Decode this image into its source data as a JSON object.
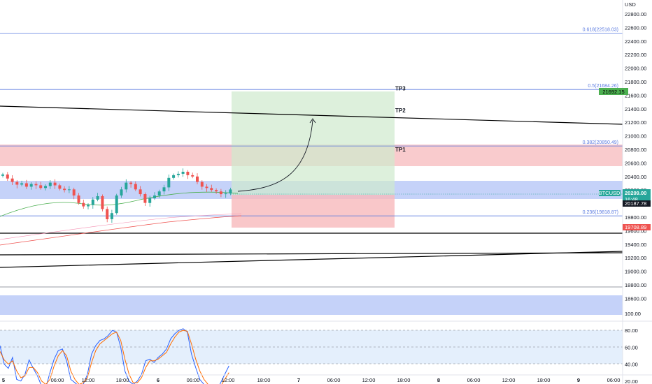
{
  "price_axis": {
    "currency": "USD",
    "ticks": [
      "22800.00",
      "22600.00",
      "22400.00",
      "22200.00",
      "22000.00",
      "21800.00",
      "21600.00",
      "21400.00",
      "21200.00",
      "21000.00",
      "20800.00",
      "20600.00",
      "20400.00",
      "20200.00",
      "20000.00",
      "19800.00",
      "19600.00",
      "19400.00",
      "19200.00",
      "19000.00",
      "18800.00",
      "18600.00"
    ],
    "tick_values": [
      22800,
      22600,
      22400,
      22200,
      22000,
      21800,
      21600,
      21400,
      21200,
      21000,
      20800,
      20600,
      20400,
      20200,
      20000,
      19800,
      19600,
      19400,
      19200,
      19000,
      18800,
      18600
    ]
  },
  "osc_axis": {
    "ticks": [
      "100.00",
      "80.00",
      "60.00",
      "40.00",
      "20.00",
      "0.00"
    ],
    "tick_values": [
      100,
      80,
      60,
      40,
      20,
      0
    ]
  },
  "time_axis": {
    "labels": [
      "5",
      "06:00",
      "12:00",
      "18:00",
      "6",
      "06:00",
      "12:00",
      "18:00",
      "7",
      "06:00",
      "12:00",
      "18:00",
      "8",
      "06:00",
      "12:00",
      "18:00",
      "9",
      "06:00"
    ],
    "emphasis": [
      true,
      false,
      false,
      false,
      true,
      false,
      false,
      false,
      true,
      false,
      false,
      false,
      true,
      false,
      false,
      false,
      true,
      false
    ]
  },
  "fib_levels": [
    {
      "label": "0.618(22518.03)",
      "price": 22518.03
    },
    {
      "label": "0.5(21684.26)",
      "price": 21684.26
    },
    {
      "label": "0.382(20850.49)",
      "price": 20850.49
    },
    {
      "label": "0.236(19818.87)",
      "price": 19818.87
    }
  ],
  "targets": [
    {
      "label": "TP3",
      "price": 21700
    },
    {
      "label": "TP2",
      "price": 21380
    },
    {
      "label": "TP1",
      "price": 20800
    }
  ],
  "price_tags": {
    "symbol": "BTCUSD",
    "current_price": "20209.00",
    "countdown": "16:48",
    "level_tag": "20187.78",
    "upper_tag": "21692.15",
    "lower_tag": "19708.89"
  },
  "colors": {
    "up": "#26a69a",
    "down": "#ef5350",
    "blue_zone": "#b2c3f7",
    "red_zone": "#f7b9bc",
    "green_zone": "#cfe9cd",
    "fib_line": "#5b7be0",
    "osc_k": "#2962ff",
    "osc_d": "#ff6d00"
  },
  "chart_data": {
    "type": "line",
    "title": "",
    "xlabel": "",
    "ylabel": "USD",
    "ylim": [
      18500,
      22950
    ],
    "series": [
      {
        "name": "",
        "values": [
          20430,
          20370,
          20320,
          20280,
          20300,
          20250,
          20290,
          20270,
          20230,
          20260,
          20310,
          20270,
          20220,
          20200,
          20210,
          20120,
          20010,
          19960,
          19980,
          20060,
          20110,
          19920,
          19770,
          19860,
          20120,
          20210,
          20310,
          20290,
          20210,
          20140,
          20010,
          20080,
          20120,
          20180,
          20240,
          20380,
          20420,
          20440,
          20470,
          20420,
          20400,
          20320,
          20250,
          20230,
          20200,
          20180,
          20140,
          20150,
          20209
        ]
      }
    ]
  }
}
